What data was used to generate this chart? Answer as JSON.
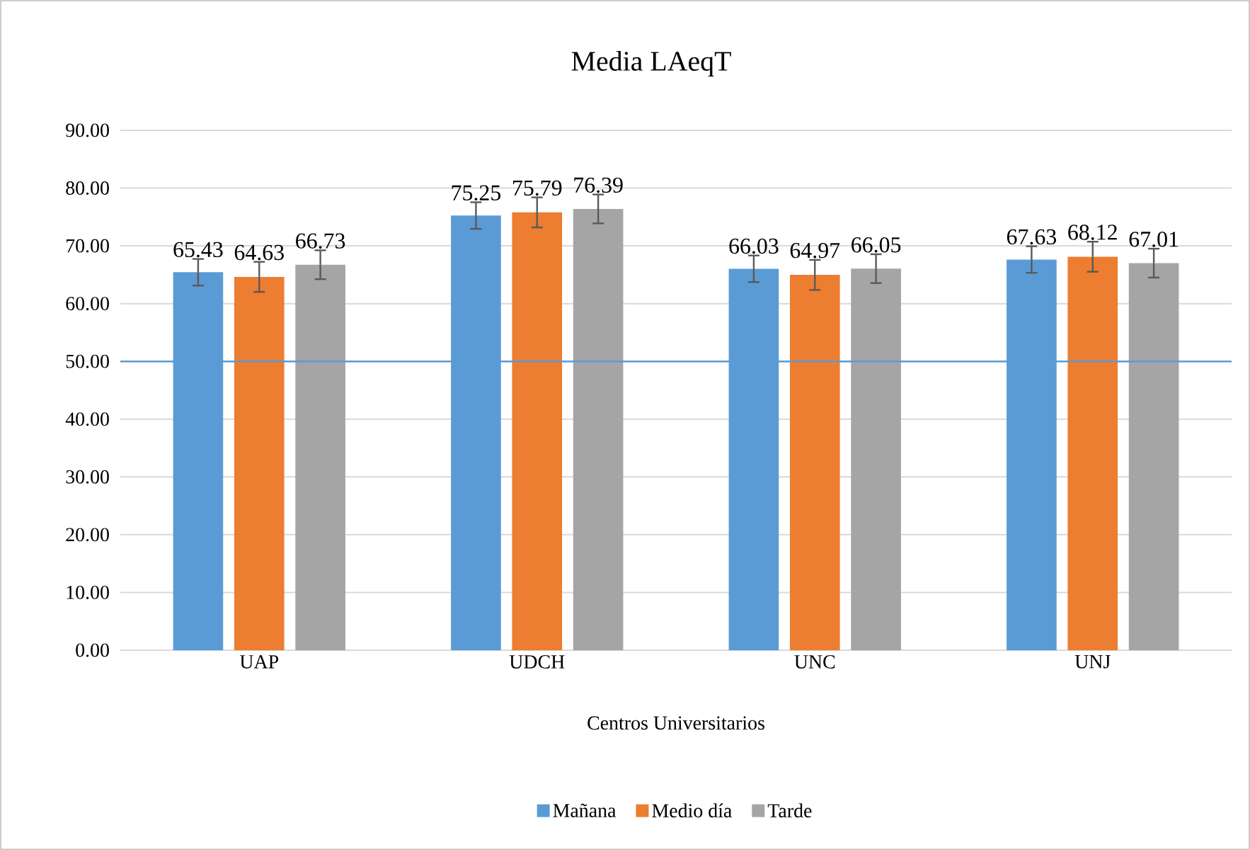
{
  "chart_data": {
    "type": "bar",
    "title": "Media LAeqT",
    "xlabel": "Centros Universitarios",
    "categories": [
      "UAP",
      "UDCH",
      "UNC",
      "UNJ"
    ],
    "series": [
      {
        "name": "Mañana",
        "color": "#5b9bd5",
        "values": [
          65.43,
          75.25,
          66.03,
          67.63
        ],
        "errors": [
          2.3,
          2.3,
          2.3,
          2.3
        ]
      },
      {
        "name": "Medio día",
        "color": "#ed7d31",
        "values": [
          64.63,
          75.79,
          64.97,
          68.12
        ],
        "errors": [
          2.6,
          2.6,
          2.6,
          2.6
        ]
      },
      {
        "name": "Tarde",
        "color": "#a5a5a5",
        "values": [
          66.73,
          76.39,
          66.05,
          67.01
        ],
        "errors": [
          2.5,
          2.5,
          2.5,
          2.5
        ]
      }
    ],
    "ylim": [
      0,
      90
    ],
    "yticks": [
      {
        "value": 0,
        "label": "0.00"
      },
      {
        "value": 10,
        "label": "10.00"
      },
      {
        "value": 20,
        "label": "20.00"
      },
      {
        "value": 30,
        "label": "30.00"
      },
      {
        "value": 40,
        "label": "40.00"
      },
      {
        "value": 50,
        "label": "50.00"
      },
      {
        "value": 60,
        "label": "60.00"
      },
      {
        "value": 70,
        "label": "70.00"
      },
      {
        "value": 80,
        "label": "80.00"
      },
      {
        "value": 90,
        "label": "90.00"
      }
    ],
    "ref_lines": [
      {
        "axis": "y",
        "value": 50,
        "color": "#5b9bd5"
      }
    ],
    "data_labels": true,
    "grid": "y",
    "legend": "bottom"
  }
}
